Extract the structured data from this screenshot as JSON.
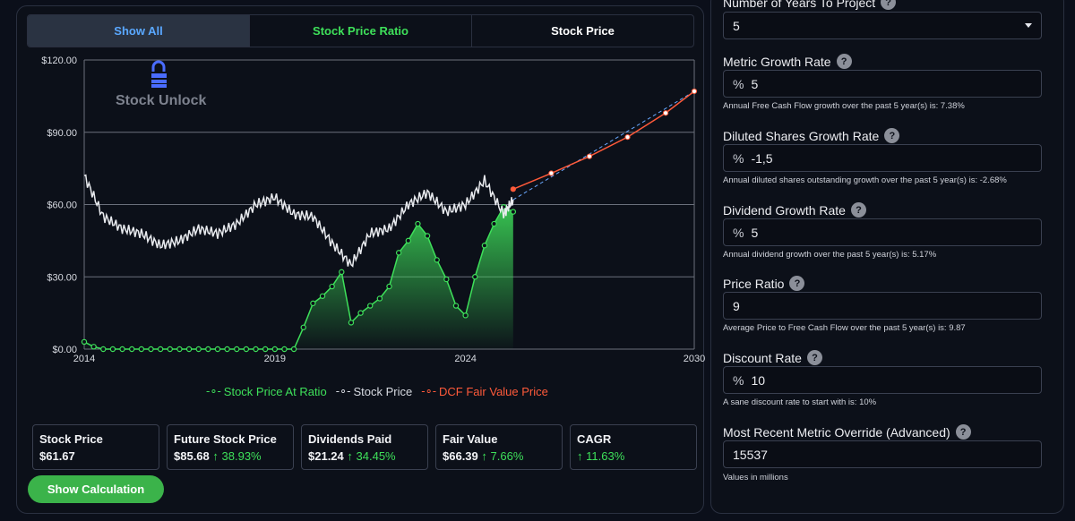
{
  "tabs": {
    "all": "Show All",
    "ratio": "Stock Price Ratio",
    "price": "Stock Price"
  },
  "watermark": "Stock Unlock",
  "legend": {
    "ratio": "Stock Price At Ratio",
    "price": "Stock Price",
    "dcf": "DCF Fair Value Price"
  },
  "colors": {
    "accent_green": "#3ee05a",
    "accent_blue": "#5aa8ff",
    "dcf_red": "#ff5a3a",
    "button_green": "#3bb34a"
  },
  "cards": [
    {
      "title": "Stock Price",
      "value": "$61.67",
      "pct": ""
    },
    {
      "title": "Future Stock Price",
      "value": "$85.68",
      "pct": "38.93%"
    },
    {
      "title": "Dividends Paid",
      "value": "$21.24",
      "pct": "34.45%"
    },
    {
      "title": "Fair Value",
      "value": "$66.39",
      "pct": "7.66%"
    },
    {
      "title": "CAGR",
      "value": "",
      "pct": "11.63%"
    }
  ],
  "calc_button": "Show Calculation",
  "form": {
    "years_label": "Number of Years To Project",
    "years_value": "5",
    "metric_label": "Metric Growth Rate",
    "metric_value": "5",
    "metric_hint": "Annual Free Cash Flow growth over the past 5 year(s) is: 7.38%",
    "shares_label": "Diluted Shares Growth Rate",
    "shares_value": "-1,5",
    "shares_hint": "Annual diluted shares outstanding growth over the past 5 year(s) is: -2.68%",
    "dividend_label": "Dividend Growth Rate",
    "dividend_value": "5",
    "dividend_hint": "Annual dividend growth over the past 5 year(s) is: 5.17%",
    "ratio_label": "Price Ratio",
    "ratio_value": "9",
    "ratio_hint": "Average Price to Free Cash Flow over the past 5 year(s) is: 9.87",
    "discount_label": "Discount Rate",
    "discount_value": "10",
    "discount_hint": "A sane discount rate to start with is: 10%",
    "override_label": "Most Recent Metric Override (Advanced)",
    "override_value": "15537",
    "override_hint": "Values in millions",
    "percent_symbol": "%"
  },
  "chart_data": {
    "type": "line",
    "ylim": [
      0,
      120
    ],
    "xlim": [
      2014,
      2030
    ],
    "y_ticks": [
      "$0.00",
      "$30.00",
      "$60.00",
      "$90.00",
      "$120.00"
    ],
    "x_ticks": [
      "2014",
      "2019",
      "2024",
      "2030"
    ],
    "grid": true,
    "legend_position": "bottom",
    "series": [
      {
        "name": "Stock Price At Ratio",
        "x": [
          2014.0,
          2014.25,
          2014.5,
          2014.75,
          2015.0,
          2015.25,
          2015.5,
          2015.75,
          2016.0,
          2016.25,
          2016.5,
          2016.75,
          2017.0,
          2017.25,
          2017.5,
          2017.75,
          2018.0,
          2018.25,
          2018.5,
          2018.75,
          2019.0,
          2019.25,
          2019.5,
          2019.75,
          2020.0,
          2020.25,
          2020.5,
          2020.75,
          2021.0,
          2021.25,
          2021.5,
          2021.75,
          2022.0,
          2022.25,
          2022.5,
          2022.75,
          2023.0,
          2023.25,
          2023.5,
          2023.75,
          2024.0,
          2024.25,
          2024.5,
          2024.75,
          2025.0,
          2025.25
        ],
        "values": [
          3,
          1,
          0,
          0,
          0,
          0,
          0,
          0,
          0,
          0,
          0,
          0,
          0,
          0,
          0,
          0,
          0,
          0,
          0,
          0,
          0,
          0,
          0,
          9,
          19,
          22,
          26,
          32,
          11,
          15,
          18,
          21,
          26,
          40,
          45,
          52,
          47,
          37,
          29,
          18,
          14,
          30,
          43,
          52,
          59,
          57
        ]
      },
      {
        "name": "Stock Price",
        "x": [
          2014.0,
          2014.5,
          2015.0,
          2015.5,
          2016.0,
          2016.5,
          2017.0,
          2017.5,
          2018.0,
          2018.5,
          2019.0,
          2019.5,
          2020.0,
          2020.5,
          2021.0,
          2021.5,
          2022.0,
          2022.5,
          2023.0,
          2023.5,
          2024.0,
          2024.5,
          2025.0,
          2025.25
        ],
        "values": [
          72,
          55,
          50,
          48,
          43,
          45,
          50,
          48,
          52,
          60,
          63,
          56,
          55,
          44,
          35,
          48,
          50,
          60,
          65,
          57,
          60,
          70,
          56,
          62
        ]
      },
      {
        "name": "DCF Fair Value Price",
        "x": [
          2025.25,
          2026.25,
          2027.25,
          2028.25,
          2029.25,
          2030.0
        ],
        "values": [
          66.39,
          73,
          80,
          88,
          98,
          107
        ]
      }
    ]
  }
}
